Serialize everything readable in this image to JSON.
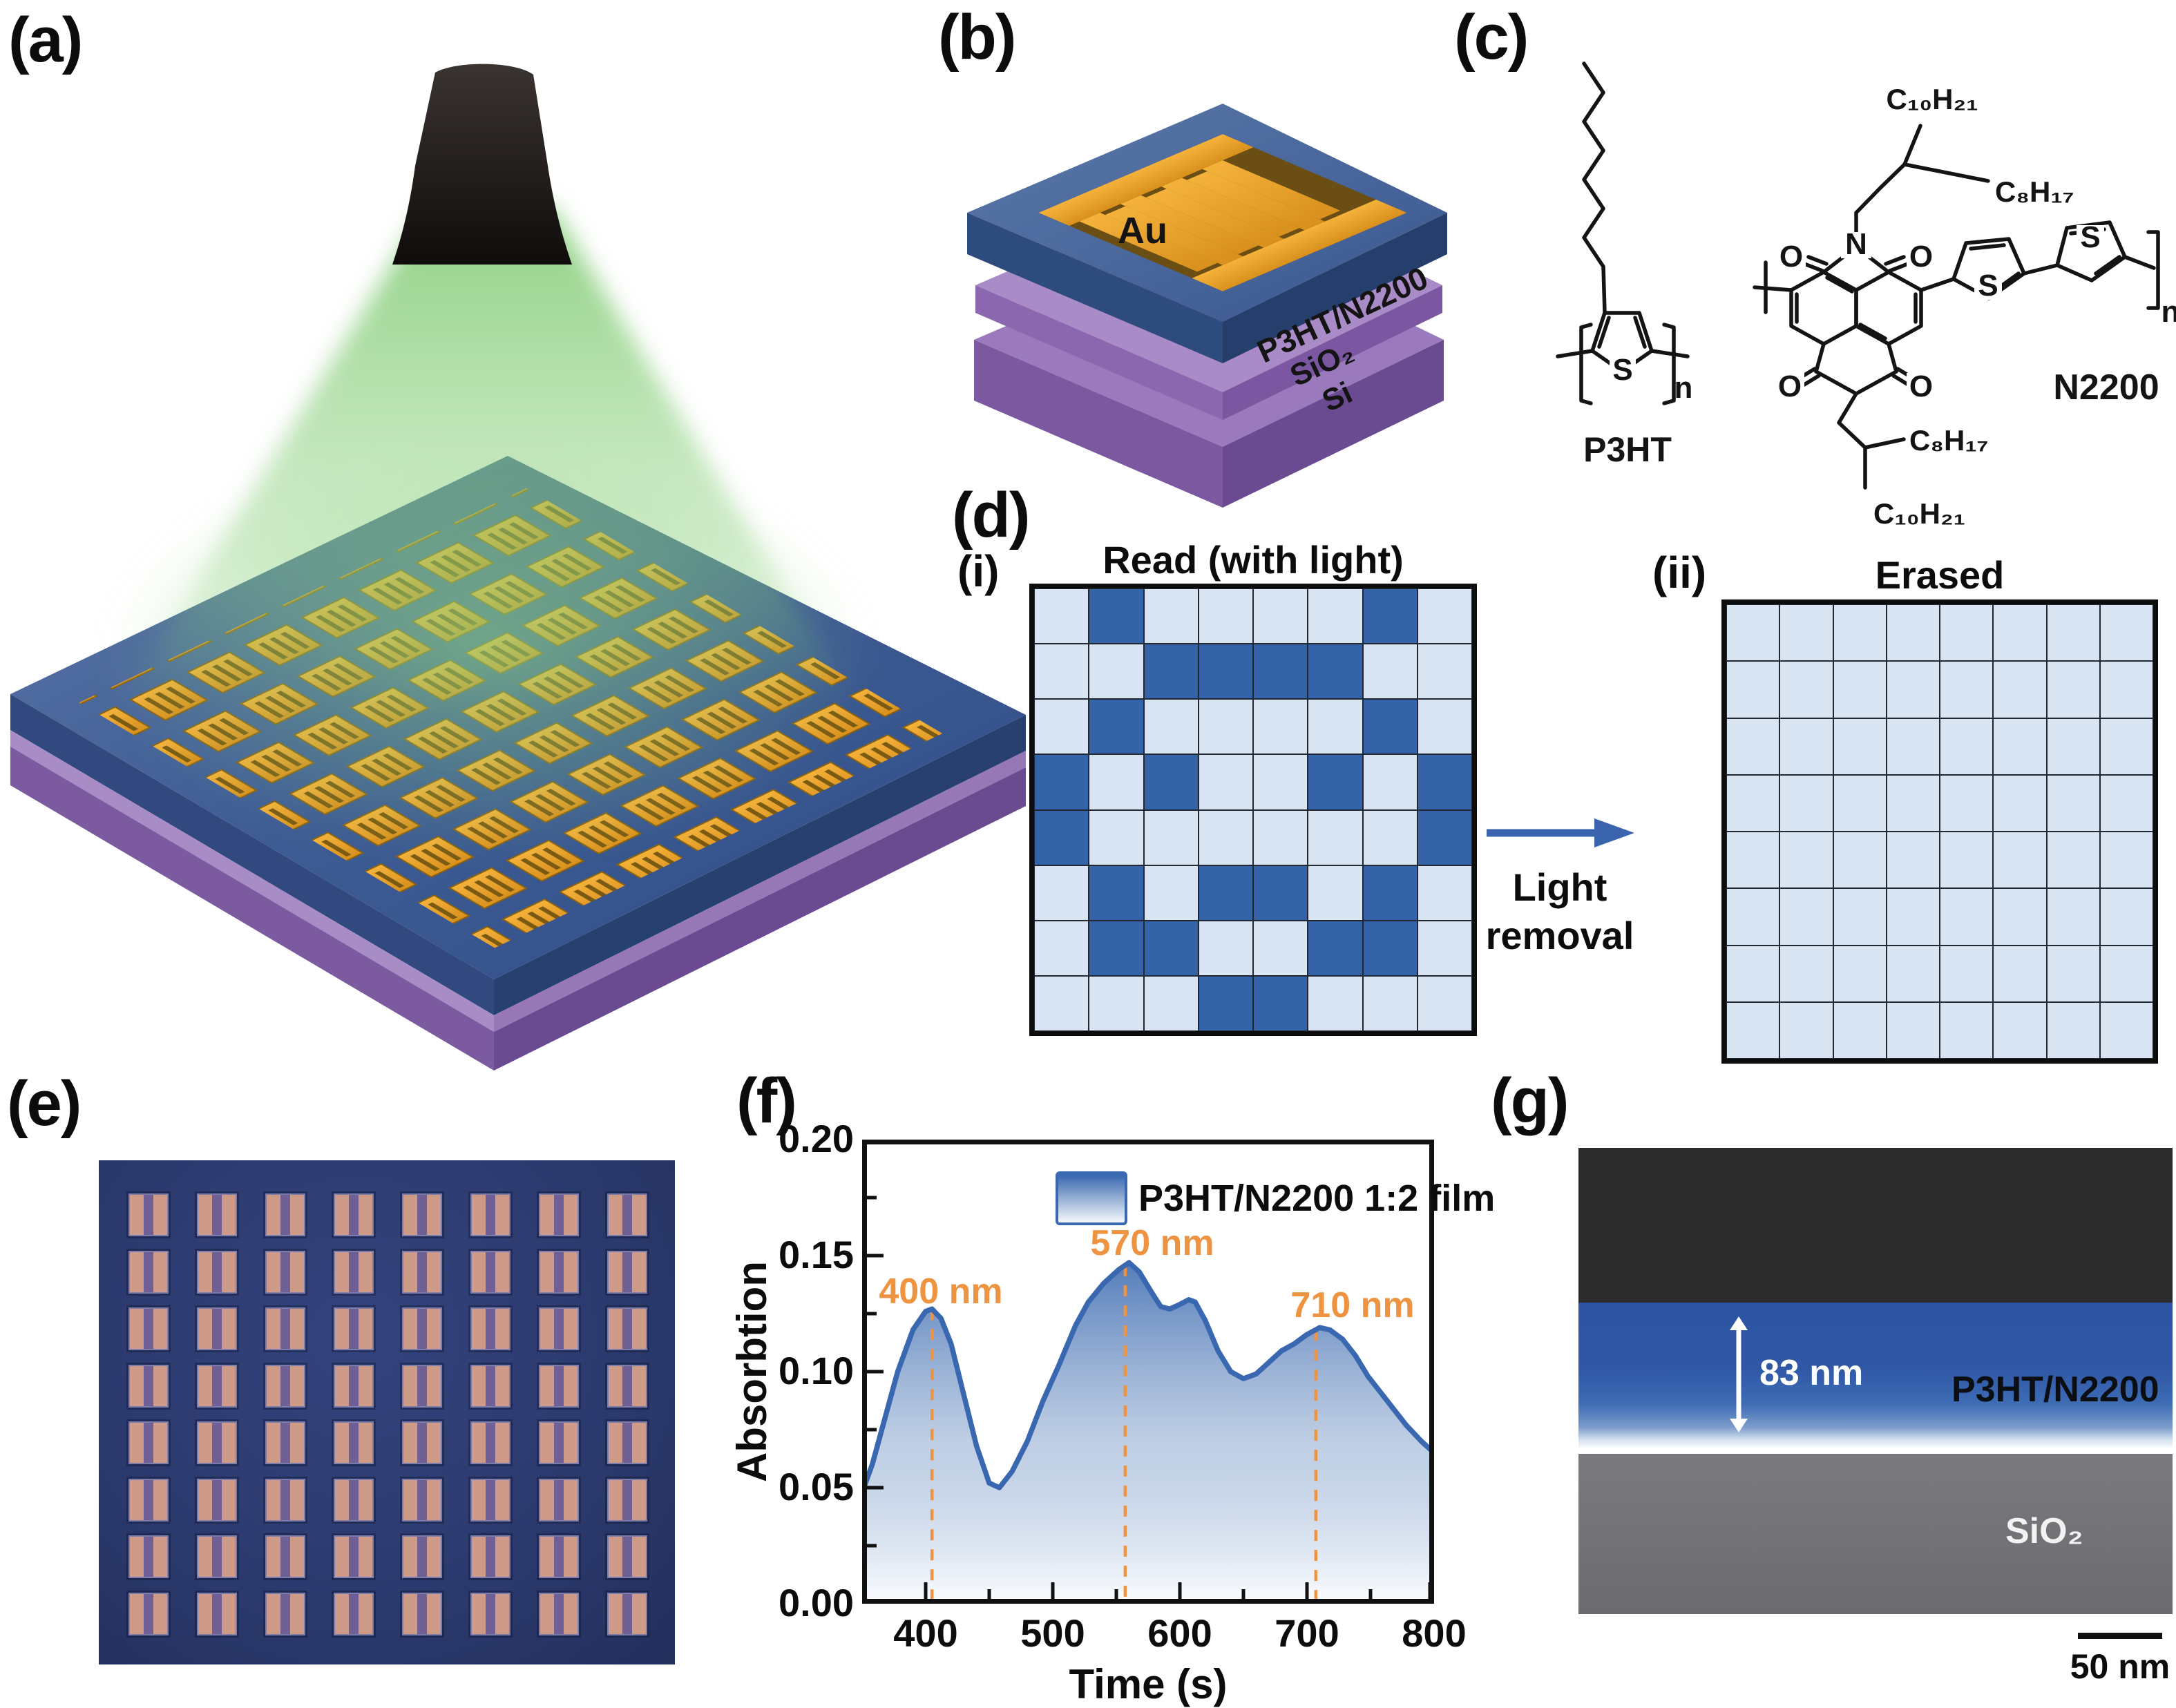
{
  "figure": {
    "panels": {
      "a": "(a)",
      "b": "(b)",
      "c": "(c)",
      "d": "(d)",
      "e": "(e)",
      "f": "(f)",
      "g": "(g)"
    },
    "sub": {
      "i": "(i)",
      "ii": "(ii)"
    }
  },
  "panel_b": {
    "au": "Au",
    "film": "P3HT/N2200",
    "sio2": "SiO₂",
    "si": "Si"
  },
  "panel_c": {
    "p3ht": {
      "name": "P3HT",
      "s": "S",
      "n": "n"
    },
    "n2200": {
      "name": "N2200",
      "n_atom": "N",
      "o": "O",
      "s": "S",
      "n_sub": "n",
      "c10h21_top": "C₁₀H₂₁",
      "c8h17_top": "C₈H₁₇",
      "c8h17_bot": "C₈H₁₇",
      "c10h21_bot": "C₁₀H₂₁"
    }
  },
  "panel_d": {
    "read_title": "Read (with light)",
    "erased_title": "Erased",
    "arrow_line1": "Light",
    "arrow_line2": "removal",
    "cell_on_color": "#3563A8",
    "cell_off_color": "#D9E4F2",
    "read_grid": [
      "01000010",
      "00111100",
      "01000010",
      "10100101",
      "10000001",
      "01011010",
      "01100110",
      "00011000"
    ],
    "erased_grid": [
      "00000000",
      "00000000",
      "00000000",
      "00000000",
      "00000000",
      "00000000",
      "00000000",
      "00000000"
    ]
  },
  "panel_e": {
    "rows": 8,
    "cols": 8,
    "background": "#2B3A6E",
    "pad_color": "#CE9B89",
    "channel_color": "#6F5F96"
  },
  "panel_g": {
    "thickness": "83 nm",
    "film": "P3HT/N2200",
    "substrate": "SiO₂",
    "scalebar": "50 nm",
    "colors": {
      "top": "#2B2B2B",
      "film": "#2F57A5",
      "substrate": "#717175"
    }
  },
  "chart_data": {
    "type": "area",
    "title": "",
    "xlabel": "Time (s)",
    "ylabel": "Absorbtion",
    "xlim": [
      350,
      800
    ],
    "ylim": [
      0,
      0.2
    ],
    "x_ticks": [
      "400",
      "500",
      "600",
      "700",
      "800"
    ],
    "y_ticks": [
      "0.20",
      "0.15",
      "0.10",
      "0.05",
      "0.00"
    ],
    "grid": false,
    "legend": {
      "label": "P3HT/N2200 1:2 film",
      "position": "top-right"
    },
    "line_color": "#3A68B0",
    "annotation_color": "#EE9340",
    "annotations": [
      {
        "x": 405,
        "label": "400 nm"
      },
      {
        "x": 557,
        "label": "570 nm"
      },
      {
        "x": 707,
        "label": "710 nm"
      }
    ],
    "series": [
      {
        "name": "P3HT/N2200 1:2 film",
        "x": [
          350,
          358,
          368,
          378,
          390,
          400,
          405,
          412,
          420,
          430,
          440,
          450,
          458,
          468,
          480,
          492,
          505,
          518,
          528,
          540,
          552,
          560,
          568,
          578,
          585,
          592,
          600,
          607,
          612,
          620,
          630,
          640,
          650,
          660,
          670,
          680,
          690,
          700,
          710,
          718,
          728,
          738,
          748,
          758,
          768,
          778,
          790,
          800
        ],
        "y": [
          0.048,
          0.06,
          0.08,
          0.1,
          0.118,
          0.126,
          0.127,
          0.123,
          0.112,
          0.09,
          0.068,
          0.052,
          0.05,
          0.057,
          0.07,
          0.087,
          0.103,
          0.12,
          0.13,
          0.138,
          0.144,
          0.147,
          0.143,
          0.134,
          0.128,
          0.127,
          0.129,
          0.131,
          0.13,
          0.122,
          0.109,
          0.1,
          0.097,
          0.099,
          0.104,
          0.109,
          0.112,
          0.116,
          0.119,
          0.118,
          0.114,
          0.107,
          0.098,
          0.091,
          0.084,
          0.077,
          0.07,
          0.065
        ]
      }
    ]
  }
}
